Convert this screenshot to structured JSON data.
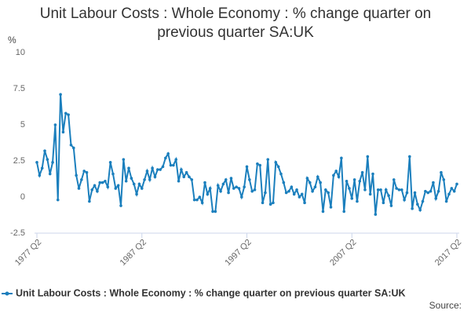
{
  "chart_data": {
    "type": "line",
    "title": "Unit Labour Costs : Whole Economy : % change quarter on previous quarter SA:UK",
    "y_label": "%",
    "source": "Source:",
    "categories": [
      "1977 Q2",
      null,
      null,
      null,
      null,
      null,
      null,
      null,
      null,
      null,
      null,
      null,
      null,
      null,
      null,
      null,
      null,
      null,
      null,
      null,
      null,
      null,
      null,
      null,
      null,
      null,
      null,
      null,
      null,
      null,
      null,
      null,
      null,
      null,
      null,
      null,
      null,
      null,
      null,
      null,
      "1987 Q2",
      null,
      null,
      null,
      null,
      null,
      null,
      null,
      null,
      null,
      null,
      null,
      null,
      null,
      null,
      null,
      null,
      null,
      null,
      null,
      null,
      null,
      null,
      null,
      null,
      null,
      null,
      null,
      null,
      null,
      null,
      null,
      null,
      null,
      null,
      null,
      null,
      null,
      null,
      null,
      "1997 Q2",
      null,
      null,
      null,
      null,
      null,
      null,
      null,
      null,
      null,
      null,
      null,
      null,
      null,
      null,
      null,
      null,
      null,
      null,
      null,
      null,
      null,
      null,
      null,
      null,
      null,
      null,
      null,
      null,
      null,
      null,
      null,
      null,
      null,
      null,
      null,
      null,
      null,
      null,
      null,
      "2007 Q2",
      null,
      null,
      null,
      null,
      null,
      null,
      null,
      null,
      null,
      null,
      null,
      null,
      null,
      null,
      null,
      null,
      null,
      null,
      null,
      null,
      null,
      null,
      null,
      null,
      null,
      null,
      null,
      null,
      null,
      null,
      null,
      null,
      null,
      null,
      null,
      null,
      null,
      null,
      null,
      "2017 Q2"
    ],
    "series": [
      {
        "name": "Unit Labour Costs : Whole Economy : % change quarter on previous quarter SA:UK",
        "color": "#1b7fbd",
        "values": [
          2.4,
          1.5,
          2.0,
          3.2,
          2.6,
          1.6,
          2.4,
          5.0,
          -0.2,
          7.1,
          4.5,
          5.8,
          5.7,
          3.6,
          3.4,
          1.5,
          0.6,
          1.2,
          1.8,
          1.7,
          -0.3,
          0.5,
          0.8,
          0.4,
          1.0,
          1.0,
          1.1,
          0.7,
          2.4,
          1.6,
          0.6,
          0.8,
          -0.6,
          2.6,
          1.1,
          2.0,
          1.3,
          0.9,
          0.2,
          0.9,
          0.6,
          1.2,
          1.8,
          1.2,
          2.0,
          1.4,
          1.9,
          1.9,
          2.1,
          2.7,
          3.0,
          2.2,
          2.2,
          2.6,
          1.1,
          1.9,
          1.4,
          1.7,
          1.4,
          1.2,
          -0.2,
          -0.2,
          0.0,
          -0.4,
          1.0,
          0.2,
          0.6,
          -1.0,
          -1.0,
          0.8,
          0.4,
          0.9,
          1.2,
          0.3,
          1.3,
          0.6,
          0.7,
          0.6,
          0.0,
          0.7,
          2.1,
          1.2,
          0.4,
          0.5,
          2.3,
          2.2,
          -0.4,
          0.3,
          2.6,
          -0.5,
          -0.4,
          2.4,
          2.1,
          1.6,
          1.0,
          0.3,
          0.4,
          0.7,
          0.2,
          0.5,
          0.0,
          0.2,
          -0.4,
          1.3,
          1.0,
          0.4,
          0.7,
          1.4,
          1.0,
          -1.0,
          0.5,
          0.3,
          -0.7,
          1.5,
          1.8,
          1.4,
          2.7,
          -1.0,
          1.1,
          0.6,
          -0.1,
          1.2,
          -0.3,
          1.1,
          1.7,
          0.5,
          2.8,
          0.2,
          1.6,
          -1.2,
          0.5,
          0.5,
          -0.4,
          0.5,
          0.1,
          -0.6,
          1.2,
          0.6,
          0.5,
          0.5,
          -0.2,
          0.3,
          2.8,
          -0.8,
          0.3,
          -0.5,
          -0.9,
          -0.3,
          0.4,
          0.3,
          0.4,
          1.0,
          -0.1,
          0.4,
          1.7,
          1.2,
          -0.3,
          0.2,
          0.6,
          0.4,
          0.9
        ]
      }
    ],
    "ylim": [
      -2.5,
      10
    ],
    "yticks": [
      -2.5,
      0,
      2.5,
      5,
      7.5,
      10
    ],
    "grid": false,
    "legend": "bottom"
  }
}
